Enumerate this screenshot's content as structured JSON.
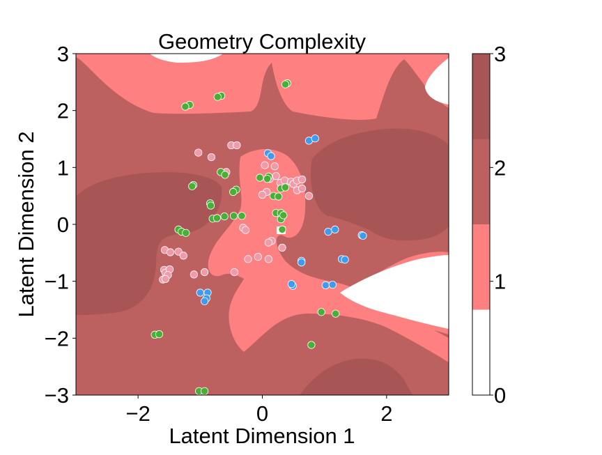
{
  "chart_data": {
    "type": "scatter",
    "title": "Geometry Complexity",
    "xlabel": "Latent Dimension 1",
    "ylabel": "Latent Dimension 2",
    "xlim": [
      -3,
      3
    ],
    "ylim": [
      -3,
      3
    ],
    "xticks": [
      -2,
      0,
      2
    ],
    "yticks": [
      -3,
      -2,
      -1,
      0,
      1,
      2,
      3
    ],
    "grid": false,
    "legend": "none",
    "colorbar": {
      "ticks": [
        0,
        1,
        2,
        3
      ],
      "levels": [
        {
          "from": 0,
          "to": 0.75,
          "color": "#ffffff"
        },
        {
          "from": 0.75,
          "to": 1.5,
          "color": "#ff8080"
        },
        {
          "from": 1.5,
          "to": 2.25,
          "color": "#bc6060"
        },
        {
          "from": 2.25,
          "to": 3,
          "color": "#a85555"
        }
      ]
    },
    "contour_colors": {
      "level0": "#ffffff",
      "level1": "#ff8080",
      "level2": "#bc6060",
      "level3": "#a85555"
    },
    "point_colors": {
      "pink": "#f29aaa",
      "green": "#47b135",
      "blue": "#3d9cf0",
      "edge": "#ffffff"
    },
    "series": [
      {
        "color_key": "pink",
        "points": [
          [
            -1.03,
            1.26
          ],
          [
            -0.82,
            1.18
          ],
          [
            -0.5,
            1.39
          ],
          [
            -0.41,
            1.39
          ],
          [
            0.04,
            1.04
          ],
          [
            0.2,
            1.02
          ],
          [
            -0.58,
            0.92
          ],
          [
            0.22,
            0.85
          ],
          [
            0.12,
            0.8
          ],
          [
            0.29,
            0.73
          ],
          [
            0.36,
            0.77
          ],
          [
            0.46,
            0.75
          ],
          [
            0.5,
            0.71
          ],
          [
            0.56,
            0.77
          ],
          [
            0.64,
            0.79
          ],
          [
            0.56,
            0.6
          ],
          [
            0.64,
            0.63
          ],
          [
            0.75,
            0.5
          ],
          [
            0.07,
            0.57
          ],
          [
            0.0,
            0.52
          ],
          [
            -0.31,
            -0.06
          ],
          [
            -0.27,
            -0.1
          ],
          [
            0.15,
            -0.29
          ],
          [
            0.1,
            -0.32
          ],
          [
            0.32,
            -0.41
          ],
          [
            -0.07,
            -0.57
          ],
          [
            -0.23,
            -0.61
          ],
          [
            -0.45,
            -0.84
          ],
          [
            0.1,
            -0.61
          ],
          [
            -1.57,
            -0.45
          ],
          [
            -1.48,
            -0.49
          ],
          [
            -1.35,
            -0.48
          ],
          [
            -1.27,
            -0.55
          ],
          [
            -1.58,
            -0.8
          ],
          [
            -1.56,
            -0.85
          ],
          [
            -1.49,
            -0.79
          ],
          [
            -1.52,
            -0.89
          ],
          [
            -1.6,
            -0.97
          ],
          [
            -1.56,
            -0.96
          ],
          [
            -0.93,
            -0.84
          ],
          [
            -1.1,
            -0.88
          ]
        ]
      },
      {
        "color_key": "green",
        "points": [
          [
            0.4,
            2.48
          ],
          [
            0.37,
            2.46
          ],
          [
            -0.66,
            2.26
          ],
          [
            -0.72,
            2.24
          ],
          [
            -1.17,
            2.1
          ],
          [
            -1.24,
            2.07
          ],
          [
            -0.67,
            0.92
          ],
          [
            -0.6,
            0.87
          ],
          [
            -1.11,
            0.69
          ],
          [
            -1.13,
            0.67
          ],
          [
            -0.42,
            0.61
          ],
          [
            -0.47,
            0.57
          ],
          [
            -0.04,
            0.82
          ],
          [
            0.1,
            0.84
          ],
          [
            0.08,
            0.8
          ],
          [
            0.3,
            0.63
          ],
          [
            0.37,
            0.65
          ],
          [
            0.18,
            0.5
          ],
          [
            0.26,
            0.49
          ],
          [
            -0.84,
            0.37
          ],
          [
            -0.83,
            0.33
          ],
          [
            -0.8,
            0.1
          ],
          [
            -0.73,
            0.11
          ],
          [
            -0.61,
            0.14
          ],
          [
            -0.46,
            0.15
          ],
          [
            -0.33,
            0.15
          ],
          [
            0.22,
            0.2
          ],
          [
            0.3,
            0.2
          ],
          [
            0.3,
            0.09
          ],
          [
            0.34,
            0.16
          ],
          [
            -1.35,
            -0.09
          ],
          [
            -1.3,
            -0.13
          ],
          [
            -1.23,
            -0.15
          ],
          [
            0.32,
            -0.09
          ],
          [
            -1.73,
            -1.94
          ],
          [
            -1.66,
            -1.93
          ],
          [
            0.95,
            -1.54
          ],
          [
            1.18,
            -1.57
          ],
          [
            0.79,
            -2.12
          ],
          [
            -1.02,
            -2.93
          ],
          [
            -0.93,
            -2.93
          ]
        ]
      },
      {
        "color_key": "blue",
        "points": [
          [
            0.75,
            1.47
          ],
          [
            0.85,
            1.51
          ],
          [
            0.09,
            1.25
          ],
          [
            0.14,
            1.2
          ],
          [
            1.06,
            -0.13
          ],
          [
            1.17,
            -0.09
          ],
          [
            1.6,
            -0.19
          ],
          [
            1.62,
            -0.2
          ],
          [
            1.28,
            -0.61
          ],
          [
            1.33,
            -0.62
          ],
          [
            0.63,
            -0.64
          ],
          [
            0.63,
            -0.67
          ],
          [
            1.02,
            -1.07
          ],
          [
            1.13,
            -1.06
          ],
          [
            0.49,
            -1.08
          ],
          [
            0.47,
            -1.05
          ],
          [
            -1.0,
            -1.2
          ],
          [
            -0.88,
            -1.2
          ],
          [
            -0.9,
            -1.3
          ],
          [
            -0.93,
            -1.35
          ]
        ]
      }
    ]
  }
}
